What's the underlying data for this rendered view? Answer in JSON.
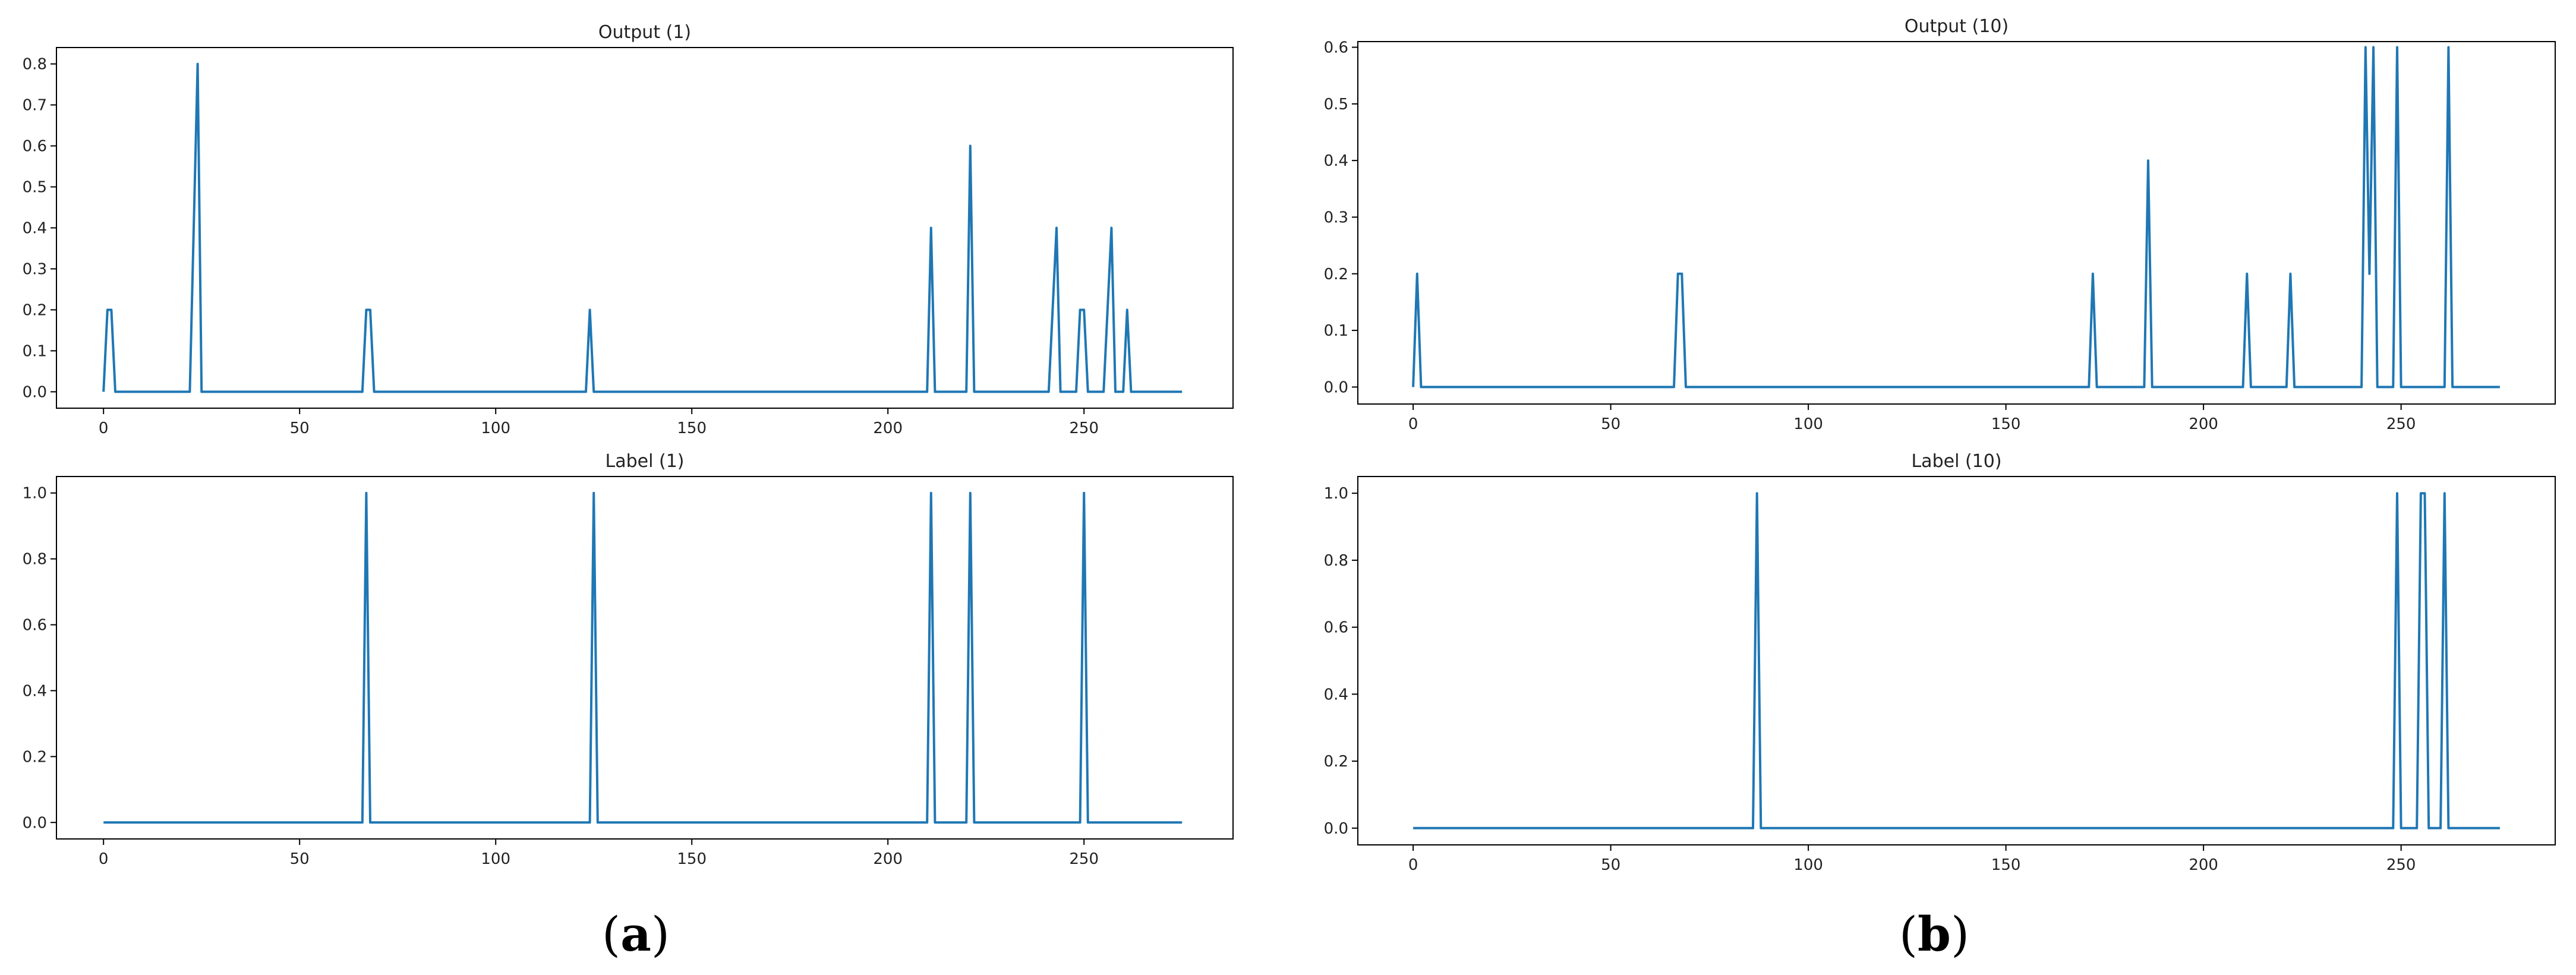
{
  "colors": {
    "series": "#1f77b4"
  },
  "chart_data": [
    {
      "type": "line",
      "title": "Output (1)",
      "xlim": [
        -12,
        288
      ],
      "ylim": [
        -0.04,
        0.84
      ],
      "xticks": [
        0,
        50,
        100,
        150,
        200,
        250
      ],
      "yticks": [
        0.0,
        0.1,
        0.2,
        0.3,
        0.4,
        0.5,
        0.6,
        0.7,
        0.8
      ],
      "ytick_labels": [
        "0.0",
        "0.1",
        "0.2",
        "0.3",
        "0.4",
        "0.5",
        "0.6",
        "0.7",
        "0.8"
      ],
      "series": [
        {
          "x": [
            0,
            1,
            2,
            3,
            22,
            24,
            25,
            66,
            67,
            68,
            69,
            123,
            124,
            125,
            210,
            211,
            212,
            220,
            221,
            222,
            241,
            242,
            243,
            244,
            248,
            249,
            250,
            251,
            255,
            257,
            258,
            260,
            261,
            262,
            275
          ],
          "y": [
            0,
            0.2,
            0.2,
            0,
            0,
            0.8,
            0,
            0,
            0.2,
            0.2,
            0,
            0,
            0.2,
            0,
            0,
            0.4,
            0,
            0,
            0.6,
            0,
            0,
            0.2,
            0.4,
            0,
            0,
            0.2,
            0.2,
            0,
            0,
            0.4,
            0,
            0,
            0.2,
            0,
            0
          ]
        }
      ]
    },
    {
      "type": "line",
      "title": "Label (1)",
      "xlim": [
        -12,
        288
      ],
      "ylim": [
        -0.05,
        1.05
      ],
      "xticks": [
        0,
        50,
        100,
        150,
        200,
        250
      ],
      "yticks": [
        0.0,
        0.2,
        0.4,
        0.6,
        0.8,
        1.0
      ],
      "ytick_labels": [
        "0.0",
        "0.2",
        "0.4",
        "0.6",
        "0.8",
        "1.0"
      ],
      "series": [
        {
          "x": [
            0,
            66,
            67,
            68,
            124,
            125,
            126,
            210,
            211,
            212,
            220,
            221,
            222,
            249,
            250,
            251,
            275
          ],
          "y": [
            0,
            0,
            1,
            0,
            0,
            1,
            0,
            0,
            1,
            0,
            0,
            1,
            0,
            0,
            1,
            0,
            0
          ]
        }
      ]
    },
    {
      "type": "line",
      "title": "Output (10)",
      "xlim": [
        -14,
        289
      ],
      "ylim": [
        -0.03,
        0.61
      ],
      "xticks": [
        0,
        50,
        100,
        150,
        200,
        250
      ],
      "yticks": [
        0.0,
        0.1,
        0.2,
        0.3,
        0.4,
        0.5,
        0.6
      ],
      "ytick_labels": [
        "0.0",
        "0.1",
        "0.2",
        "0.3",
        "0.4",
        "0.5",
        "0.6"
      ],
      "series": [
        {
          "x": [
            0,
            1,
            2,
            66,
            67,
            68,
            69,
            171,
            172,
            173,
            185,
            186,
            187,
            210,
            211,
            212,
            221,
            222,
            223,
            240,
            241,
            242,
            243,
            244,
            248,
            249,
            250,
            261,
            262,
            263,
            275
          ],
          "y": [
            0,
            0.2,
            0,
            0,
            0.2,
            0.2,
            0,
            0,
            0.2,
            0,
            0,
            0.4,
            0,
            0,
            0.2,
            0,
            0,
            0.2,
            0,
            0,
            0.6,
            0.2,
            0.6,
            0,
            0,
            0.6,
            0,
            0,
            0.6,
            0,
            0
          ]
        }
      ]
    },
    {
      "type": "line",
      "title": "Label (10)",
      "xlim": [
        -14,
        289
      ],
      "ylim": [
        -0.05,
        1.05
      ],
      "xticks": [
        0,
        50,
        100,
        150,
        200,
        250
      ],
      "yticks": [
        0.0,
        0.2,
        0.4,
        0.6,
        0.8,
        1.0
      ],
      "ytick_labels": [
        "0.0",
        "0.2",
        "0.4",
        "0.6",
        "0.8",
        "1.0"
      ],
      "series": [
        {
          "x": [
            0,
            86,
            87,
            88,
            248,
            249,
            250,
            254,
            255,
            256,
            257,
            260,
            261,
            262,
            275
          ],
          "y": [
            0,
            0,
            1,
            0,
            0,
            1,
            0,
            0,
            1,
            1,
            0,
            0,
            1,
            0,
            0
          ]
        }
      ]
    }
  ],
  "panel_labels": [
    {
      "open": "(",
      "letter": "a",
      "close": ")"
    },
    {
      "open": "(",
      "letter": "b",
      "close": ")"
    }
  ]
}
